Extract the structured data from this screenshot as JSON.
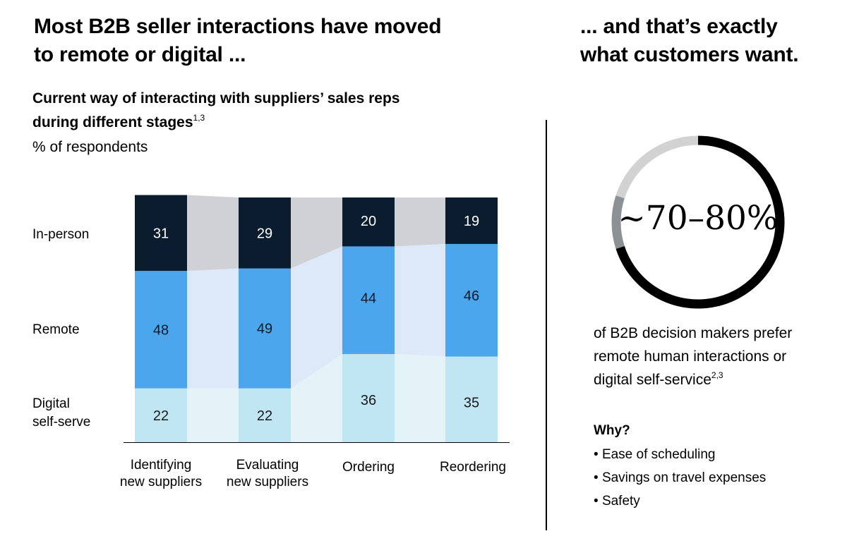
{
  "left_headline": [
    "Most B2B seller interactions have moved",
    "to remote or digital ..."
  ],
  "right_headline": [
    "... and that’s exactly",
    "what customers want."
  ],
  "chart_title": [
    "Current way of interacting with suppliers’ sales reps",
    "during different stages"
  ],
  "chart_title_sup": "1,3",
  "chart_unit": "% of respondents",
  "row_labels": {
    "in_person": "In-person",
    "remote": "Remote",
    "digital": [
      "Digital",
      "self-serve"
    ]
  },
  "category_labels": [
    [
      "Identifying",
      "new suppliers"
    ],
    [
      "Evaluating",
      "new suppliers"
    ],
    [
      "Ordering"
    ],
    [
      "Reordering"
    ]
  ],
  "chart_data": {
    "type": "bar",
    "stacked": true,
    "categories": [
      "Identifying new suppliers",
      "Evaluating new suppliers",
      "Ordering",
      "Reordering"
    ],
    "series": [
      {
        "name": "Digital self-serve",
        "values": [
          22,
          22,
          36,
          35
        ],
        "color": "#bfe6f2",
        "band_color": "#e3f3f8",
        "text_color": "#1a1a1a"
      },
      {
        "name": "Remote",
        "values": [
          48,
          49,
          44,
          46
        ],
        "color": "#4ba6ee",
        "band_color": "#dde9f9",
        "text_color": "#0b1a2b"
      },
      {
        "name": "In-person",
        "values": [
          31,
          29,
          20,
          19
        ],
        "color": "#0b1c2e",
        "band_color": "#cfd1d4",
        "text_color": "#ffffff"
      }
    ],
    "ylim": [
      0,
      100
    ],
    "grid": false,
    "legend": "left-side row labels"
  },
  "donut": {
    "value_text": "~70–80%",
    "share_min": 0.7,
    "share_max": 0.8,
    "colors": {
      "main": "#000000",
      "range": "#8c9196",
      "rest": "#d2d2d2"
    }
  },
  "donut_caption": [
    "of B2B decision makers prefer",
    "remote human interactions or",
    "digital self-service"
  ],
  "donut_caption_sup": "2,3",
  "why": {
    "heading": "Why?",
    "items": [
      "Ease of scheduling",
      "Savings on travel expenses",
      "Safety"
    ]
  },
  "colors": {
    "text": "#000000",
    "divider": "#000000"
  }
}
